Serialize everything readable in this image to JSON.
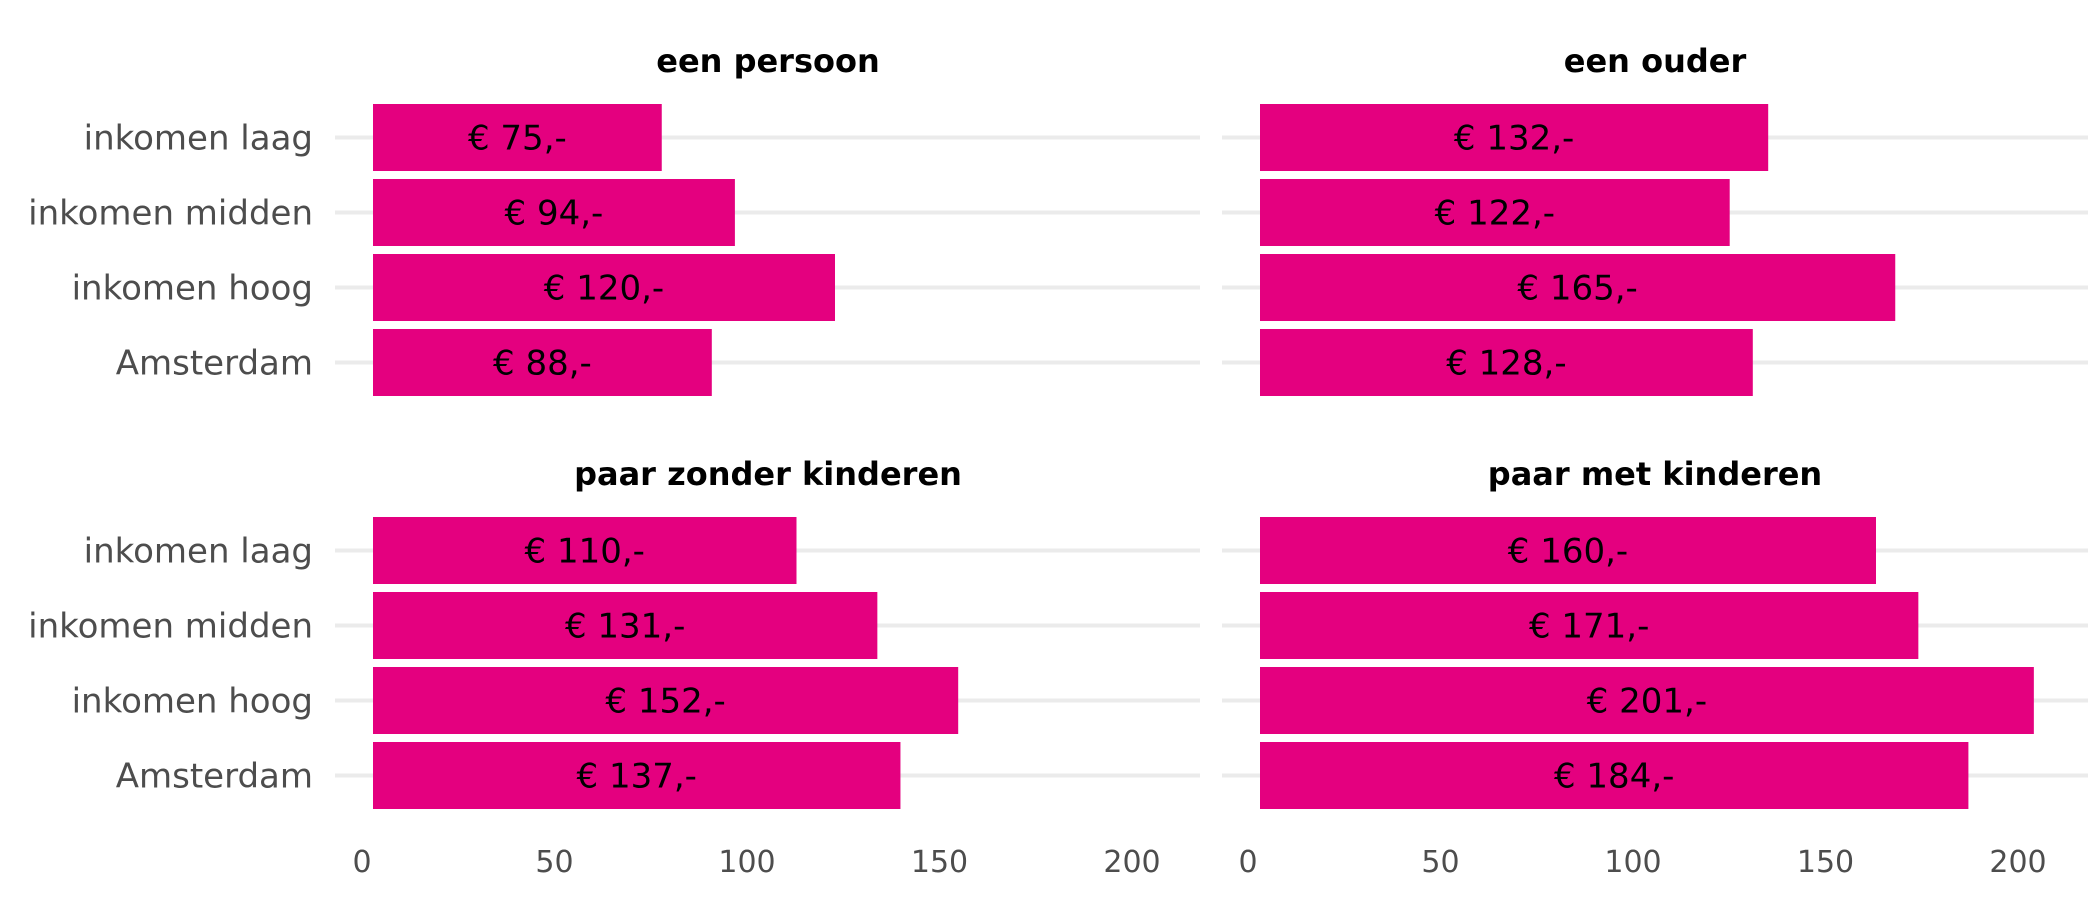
{
  "chart_data": {
    "type": "bar",
    "orientation": "horizontal",
    "categories": [
      "inkomen laag",
      "inkomen midden",
      "inkomen hoog",
      "Amsterdam"
    ],
    "xlim": [
      0,
      220
    ],
    "x_ticks": [
      0,
      50,
      100,
      150,
      200
    ],
    "grid": "horizontal",
    "bar_color": "#e4007f",
    "facets": [
      {
        "title": "een persoon",
        "values": [
          75,
          94,
          120,
          88
        ],
        "labels": [
          "€ 75,-",
          "€ 94,-",
          "€ 120,-",
          "€ 88,-"
        ]
      },
      {
        "title": "een ouder",
        "values": [
          132,
          122,
          165,
          128
        ],
        "labels": [
          "€ 132,-",
          "€ 122,-",
          "€ 165,-",
          "€ 128,-"
        ]
      },
      {
        "title": "paar zonder kinderen",
        "values": [
          110,
          131,
          152,
          137
        ],
        "labels": [
          "€ 110,-",
          "€ 131,-",
          "€ 152,-",
          "€ 137,-"
        ]
      },
      {
        "title": "paar met kinderen",
        "values": [
          160,
          171,
          201,
          184
        ],
        "labels": [
          "€ 160,-",
          "€ 171,-",
          "€ 201,-",
          "€ 184,-"
        ]
      }
    ]
  }
}
